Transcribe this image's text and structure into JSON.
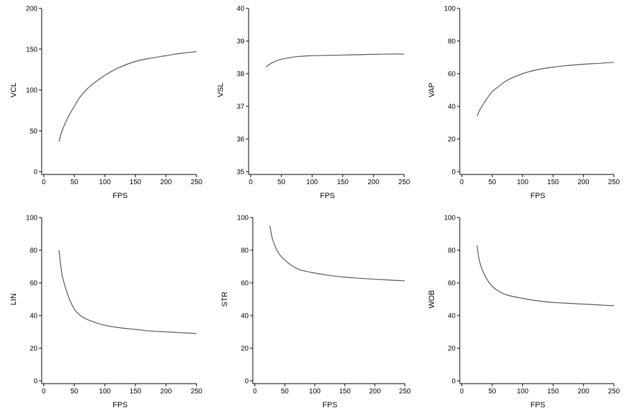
{
  "chart_data": [
    {
      "type": "line",
      "xlabel": "FPS",
      "ylabel": "VCL",
      "xlim": [
        0,
        250
      ],
      "ylim": [
        0,
        200
      ],
      "xticks": [
        "0",
        "50",
        "100",
        "150",
        "200",
        "250"
      ],
      "yticks": [
        "0",
        "50",
        "100",
        "150",
        "200"
      ],
      "series": [
        {
          "x": [
            25,
            30,
            40,
            50,
            60,
            75,
            100,
            125,
            150,
            175,
            200,
            225,
            250
          ],
          "y": [
            37,
            50,
            67,
            80,
            92,
            104,
            118,
            128,
            135,
            139,
            142,
            145,
            147
          ]
        }
      ]
    },
    {
      "type": "line",
      "xlabel": "FPS",
      "ylabel": "VSL",
      "xlim": [
        0,
        250
      ],
      "ylim": [
        35,
        40
      ],
      "xticks": [
        "0",
        "50",
        "100",
        "150",
        "200",
        "250"
      ],
      "yticks": [
        "35",
        "36",
        "37",
        "38",
        "39",
        "40"
      ],
      "series": [
        {
          "x": [
            25,
            30,
            40,
            50,
            60,
            75,
            100,
            125,
            150,
            175,
            200,
            225,
            250
          ],
          "y": [
            38.2,
            38.28,
            38.38,
            38.44,
            38.48,
            38.52,
            38.55,
            38.56,
            38.57,
            38.58,
            38.59,
            38.6,
            38.6
          ]
        }
      ]
    },
    {
      "type": "line",
      "xlabel": "FPS",
      "ylabel": "VAP",
      "xlim": [
        0,
        250
      ],
      "ylim": [
        0,
        100
      ],
      "xticks": [
        "0",
        "50",
        "100",
        "150",
        "200",
        "250"
      ],
      "yticks": [
        "0",
        "20",
        "40",
        "60",
        "80",
        "100"
      ],
      "series": [
        {
          "x": [
            25,
            30,
            40,
            50,
            60,
            75,
            100,
            125,
            150,
            175,
            200,
            225,
            250
          ],
          "y": [
            34,
            38,
            44,
            49,
            52,
            56,
            60,
            62.5,
            64,
            65,
            65.8,
            66.3,
            67
          ]
        }
      ]
    },
    {
      "type": "line",
      "xlabel": "FPS",
      "ylabel": "LIN",
      "xlim": [
        0,
        250
      ],
      "ylim": [
        0,
        100
      ],
      "xticks": [
        "0",
        "50",
        "100",
        "150",
        "200",
        "250"
      ],
      "yticks": [
        "0",
        "20",
        "40",
        "60",
        "80",
        "100"
      ],
      "series": [
        {
          "x": [
            25,
            30,
            40,
            50,
            60,
            75,
            100,
            125,
            150,
            175,
            200,
            225,
            250
          ],
          "y": [
            80,
            65,
            52,
            44,
            40,
            37,
            34,
            32.5,
            31.5,
            30.5,
            30,
            29.5,
            29
          ]
        }
      ]
    },
    {
      "type": "line",
      "xlabel": "FPS",
      "ylabel": "STR",
      "xlim": [
        0,
        250
      ],
      "ylim": [
        0,
        100
      ],
      "xticks": [
        "0",
        "50",
        "100",
        "150",
        "200",
        "250"
      ],
      "yticks": [
        "0",
        "20",
        "40",
        "60",
        "80",
        "100"
      ],
      "series": [
        {
          "x": [
            25,
            30,
            40,
            50,
            60,
            75,
            100,
            125,
            150,
            175,
            200,
            225,
            250
          ],
          "y": [
            95,
            86,
            78,
            74,
            71,
            68,
            66,
            64.5,
            63.5,
            62.8,
            62.2,
            61.7,
            61.3
          ]
        }
      ]
    },
    {
      "type": "line",
      "xlabel": "FPS",
      "ylabel": "WOB",
      "xlim": [
        0,
        250
      ],
      "ylim": [
        0,
        100
      ],
      "xticks": [
        "0",
        "50",
        "100",
        "150",
        "200",
        "250"
      ],
      "yticks": [
        "0",
        "20",
        "40",
        "60",
        "80",
        "100"
      ],
      "series": [
        {
          "x": [
            25,
            30,
            40,
            50,
            60,
            75,
            100,
            125,
            150,
            175,
            200,
            225,
            250
          ],
          "y": [
            83,
            72,
            63,
            58,
            55,
            52.5,
            50.5,
            49,
            48,
            47.5,
            47,
            46.5,
            46
          ]
        }
      ]
    }
  ]
}
